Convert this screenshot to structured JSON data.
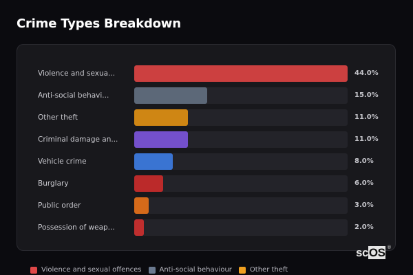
{
  "header": {
    "title": "Crime Types Breakdown"
  },
  "chart_data": {
    "type": "bar",
    "orientation": "horizontal",
    "title": "Crime Types Breakdown",
    "xlabel": "",
    "ylabel": "",
    "xlim": [
      0,
      44
    ],
    "grid": false,
    "legend_position": "bottom",
    "categories": [
      "Violence and sexual offences",
      "Anti-social behaviour",
      "Other theft",
      "Criminal damage and arson",
      "Vehicle crime",
      "Burglary",
      "Public order",
      "Possession of weapons"
    ],
    "values": [
      44.0,
      15.0,
      11.0,
      11.0,
      8.0,
      6.0,
      3.0,
      2.0
    ],
    "unit": "%"
  },
  "rows": [
    {
      "label": "Violence and sexua...",
      "value_label": "44.0%",
      "width_pct": "100%",
      "color": "#cc4040"
    },
    {
      "label": "Anti-social behavi...",
      "value_label": "15.0%",
      "width_pct": "34.1%",
      "color": "#5c6878"
    },
    {
      "label": "Other theft",
      "value_label": "11.0%",
      "width_pct": "25%",
      "color": "#cf8614"
    },
    {
      "label": "Criminal damage an...",
      "value_label": "11.0%",
      "width_pct": "25%",
      "color": "#7450cc"
    },
    {
      "label": "Vehicle crime",
      "value_label": "8.0%",
      "width_pct": "18.2%",
      "color": "#3a74d2"
    },
    {
      "label": "Burglary",
      "value_label": "6.0%",
      "width_pct": "13.6%",
      "color": "#bb2a2a"
    },
    {
      "label": "Public order",
      "value_label": "3.0%",
      "width_pct": "6.8%",
      "color": "#d56a1a"
    },
    {
      "label": "Possession of weap...",
      "value_label": "2.0%",
      "width_pct": "4.5%",
      "color": "#bf2e2e"
    }
  ],
  "legend": [
    {
      "label": "Violence and sexual offences",
      "color": "#e04848"
    },
    {
      "label": "Anti-social behaviour",
      "color": "#6b7a90"
    },
    {
      "label": "Other theft",
      "color": "#f0a020"
    }
  ],
  "watermark": {
    "plain": "sc",
    "boxed": "OS",
    "reg": "®"
  }
}
